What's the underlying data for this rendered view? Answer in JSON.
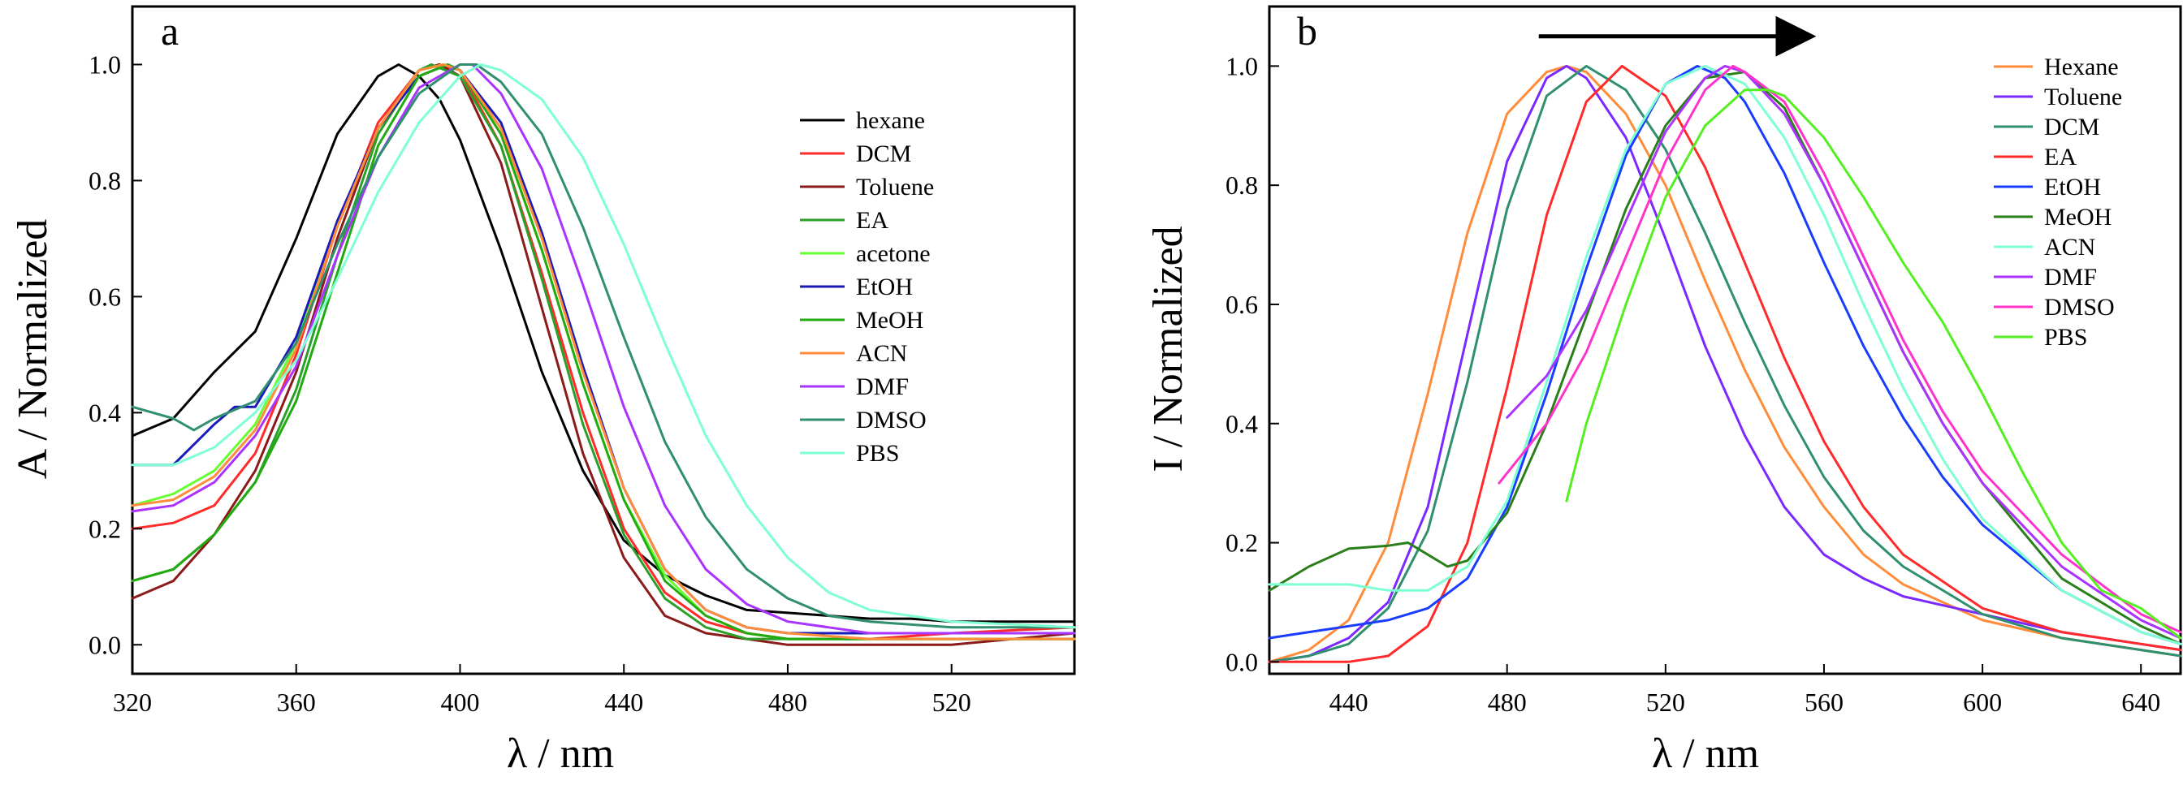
{
  "chart_data": [
    {
      "panel_label": "a",
      "type": "line",
      "xlabel": "λ / nm",
      "ylabel": "A / Normalized",
      "xlim": [
        320,
        550
      ],
      "ylim": [
        -0.05,
        1.1
      ],
      "xticks": [
        "320",
        "360",
        "400",
        "440",
        "480",
        "520"
      ],
      "yticks": [
        "0.0",
        "0.2",
        "0.4",
        "0.6",
        "0.8",
        "1.0"
      ],
      "legend_position": "right",
      "series": [
        {
          "name": "hexane",
          "color": "#000000",
          "x": [
            320,
            330,
            340,
            350,
            360,
            370,
            380,
            385,
            390,
            395,
            400,
            410,
            420,
            430,
            440,
            450,
            460,
            470,
            480,
            490,
            500,
            510,
            520,
            530,
            540,
            550
          ],
          "y": [
            0.36,
            0.39,
            0.47,
            0.54,
            0.7,
            0.88,
            0.98,
            1.0,
            0.98,
            0.94,
            0.87,
            0.68,
            0.47,
            0.3,
            0.18,
            0.12,
            0.085,
            0.06,
            0.055,
            0.05,
            0.045,
            0.045,
            0.04,
            0.04,
            0.04,
            0.04
          ]
        },
        {
          "name": "DCM",
          "color": "#ff2a2a",
          "x": [
            320,
            330,
            340,
            350,
            360,
            370,
            380,
            390,
            395,
            400,
            410,
            420,
            430,
            440,
            450,
            460,
            470,
            480,
            490,
            500,
            520,
            550
          ],
          "y": [
            0.2,
            0.21,
            0.24,
            0.33,
            0.5,
            0.72,
            0.9,
            0.99,
            1.0,
            0.99,
            0.86,
            0.64,
            0.4,
            0.2,
            0.09,
            0.04,
            0.02,
            0.01,
            0.01,
            0.01,
            0.02,
            0.03
          ]
        },
        {
          "name": "Toluene",
          "color": "#8b1a1a",
          "x": [
            320,
            330,
            340,
            350,
            360,
            370,
            380,
            390,
            395,
            400,
            410,
            420,
            430,
            440,
            450,
            460,
            470,
            480,
            490,
            500,
            520,
            550
          ],
          "y": [
            0.08,
            0.11,
            0.19,
            0.3,
            0.47,
            0.7,
            0.89,
            0.99,
            1.0,
            0.98,
            0.83,
            0.58,
            0.33,
            0.15,
            0.05,
            0.02,
            0.01,
            0.0,
            0.0,
            0.0,
            0.0,
            0.02
          ]
        },
        {
          "name": "EA",
          "color": "#2aa02a",
          "x": [
            320,
            330,
            340,
            350,
            360,
            370,
            380,
            390,
            393,
            400,
            410,
            420,
            430,
            440,
            450,
            460,
            470,
            480,
            500,
            550
          ],
          "y": [
            0.11,
            0.13,
            0.19,
            0.28,
            0.44,
            0.67,
            0.88,
            0.99,
            1.0,
            0.98,
            0.86,
            0.63,
            0.38,
            0.19,
            0.08,
            0.03,
            0.01,
            0.01,
            0.01,
            0.01
          ]
        },
        {
          "name": "acetone",
          "color": "#66ff33",
          "x": [
            320,
            330,
            340,
            350,
            360,
            370,
            380,
            390,
            396,
            400,
            410,
            420,
            430,
            440,
            450,
            460,
            470,
            480,
            500,
            550
          ],
          "y": [
            0.24,
            0.26,
            0.3,
            0.38,
            0.52,
            0.72,
            0.89,
            0.99,
            1.0,
            0.99,
            0.88,
            0.68,
            0.45,
            0.25,
            0.12,
            0.05,
            0.02,
            0.01,
            0.01,
            0.01
          ]
        },
        {
          "name": "EtOH",
          "color": "#1a1ab8",
          "x": [
            320,
            330,
            340,
            345,
            350,
            360,
            370,
            380,
            390,
            397,
            400,
            410,
            420,
            430,
            440,
            450,
            460,
            470,
            480,
            500,
            550
          ],
          "y": [
            0.31,
            0.31,
            0.38,
            0.41,
            0.41,
            0.53,
            0.73,
            0.89,
            0.98,
            1.0,
            0.99,
            0.9,
            0.71,
            0.48,
            0.27,
            0.13,
            0.06,
            0.03,
            0.02,
            0.02,
            0.02
          ]
        },
        {
          "name": "MeOH",
          "color": "#22aa11",
          "x": [
            320,
            330,
            340,
            350,
            360,
            370,
            380,
            390,
            397,
            400,
            410,
            420,
            430,
            440,
            450,
            460,
            470,
            480,
            500,
            550
          ],
          "y": [
            0.11,
            0.13,
            0.19,
            0.28,
            0.42,
            0.64,
            0.86,
            0.98,
            1.0,
            0.99,
            0.88,
            0.68,
            0.45,
            0.25,
            0.11,
            0.05,
            0.02,
            0.01,
            0.01,
            0.01
          ]
        },
        {
          "name": "ACN",
          "color": "#ff8c3a",
          "x": [
            320,
            330,
            340,
            350,
            360,
            370,
            380,
            390,
            396,
            400,
            410,
            420,
            430,
            440,
            450,
            460,
            470,
            480,
            500,
            550
          ],
          "y": [
            0.24,
            0.25,
            0.29,
            0.37,
            0.51,
            0.72,
            0.89,
            0.99,
            1.0,
            0.99,
            0.89,
            0.7,
            0.47,
            0.27,
            0.13,
            0.06,
            0.03,
            0.02,
            0.01,
            0.01
          ]
        },
        {
          "name": "DMF",
          "color": "#aa33ff",
          "x": [
            320,
            330,
            340,
            350,
            360,
            370,
            380,
            390,
            400,
            403,
            410,
            420,
            430,
            440,
            450,
            460,
            470,
            480,
            490,
            500,
            520,
            550
          ],
          "y": [
            0.23,
            0.24,
            0.28,
            0.36,
            0.48,
            0.67,
            0.84,
            0.96,
            1.0,
            1.0,
            0.95,
            0.82,
            0.62,
            0.41,
            0.24,
            0.13,
            0.07,
            0.04,
            0.03,
            0.02,
            0.02,
            0.02
          ]
        },
        {
          "name": "DMSO",
          "color": "#2f8f6f",
          "x": [
            320,
            330,
            335,
            340,
            350,
            360,
            370,
            380,
            390,
            400,
            404,
            410,
            420,
            430,
            440,
            450,
            460,
            470,
            480,
            490,
            500,
            520,
            550
          ],
          "y": [
            0.41,
            0.39,
            0.37,
            0.39,
            0.42,
            0.52,
            0.69,
            0.84,
            0.95,
            1.0,
            1.0,
            0.97,
            0.88,
            0.72,
            0.53,
            0.35,
            0.22,
            0.13,
            0.08,
            0.05,
            0.04,
            0.03,
            0.03
          ]
        },
        {
          "name": "PBS",
          "color": "#7fffd4",
          "x": [
            320,
            330,
            340,
            350,
            360,
            370,
            380,
            390,
            400,
            405,
            410,
            420,
            430,
            440,
            450,
            460,
            470,
            480,
            490,
            500,
            520,
            550
          ],
          "y": [
            0.31,
            0.31,
            0.34,
            0.4,
            0.49,
            0.63,
            0.78,
            0.9,
            0.98,
            1.0,
            0.99,
            0.94,
            0.84,
            0.69,
            0.52,
            0.36,
            0.24,
            0.15,
            0.09,
            0.06,
            0.04,
            0.03
          ]
        }
      ]
    },
    {
      "panel_label": "b",
      "type": "line",
      "xlabel": "λ / nm",
      "ylabel": "I / Normalized",
      "xlim": [
        420,
        650
      ],
      "ylim": [
        -0.02,
        1.1
      ],
      "xticks": [
        "440",
        "480",
        "520",
        "560",
        "600",
        "640"
      ],
      "yticks": [
        "0.0",
        "0.2",
        "0.4",
        "0.6",
        "0.8",
        "1.0"
      ],
      "legend_position": "right",
      "arrow": {
        "from": 488,
        "to": 556,
        "y": 1.05,
        "color": "#000000"
      },
      "series": [
        {
          "name": "Hexane",
          "color": "#ff8c3a",
          "x": [
            420,
            430,
            440,
            450,
            460,
            470,
            480,
            490,
            495,
            500,
            510,
            520,
            530,
            540,
            550,
            560,
            570,
            580,
            600,
            620,
            640,
            650
          ],
          "y": [
            0.0,
            0.02,
            0.07,
            0.2,
            0.45,
            0.72,
            0.92,
            0.99,
            1.0,
            0.99,
            0.92,
            0.8,
            0.64,
            0.49,
            0.36,
            0.26,
            0.18,
            0.13,
            0.07,
            0.04,
            0.02,
            0.01
          ]
        },
        {
          "name": "Toluene",
          "color": "#7a2aff",
          "x": [
            420,
            430,
            440,
            450,
            460,
            470,
            480,
            490,
            495,
            500,
            510,
            520,
            530,
            540,
            550,
            560,
            570,
            580,
            600,
            620,
            640,
            650
          ],
          "y": [
            0.0,
            0.01,
            0.04,
            0.1,
            0.26,
            0.55,
            0.84,
            0.98,
            1.0,
            0.98,
            0.88,
            0.71,
            0.53,
            0.38,
            0.26,
            0.18,
            0.14,
            0.11,
            0.08,
            0.05,
            0.03,
            0.02
          ]
        },
        {
          "name": "DCM",
          "color": "#2f8f6f",
          "x": [
            420,
            430,
            440,
            450,
            460,
            470,
            480,
            490,
            500,
            510,
            520,
            530,
            540,
            550,
            560,
            570,
            580,
            600,
            620,
            640,
            650
          ],
          "y": [
            0.0,
            0.01,
            0.03,
            0.09,
            0.22,
            0.47,
            0.76,
            0.95,
            1.0,
            0.96,
            0.86,
            0.72,
            0.57,
            0.43,
            0.31,
            0.22,
            0.16,
            0.08,
            0.04,
            0.02,
            0.01
          ]
        },
        {
          "name": "EA",
          "color": "#ff2a2a",
          "x": [
            420,
            430,
            440,
            450,
            460,
            470,
            480,
            490,
            500,
            509,
            520,
            530,
            540,
            550,
            560,
            570,
            580,
            600,
            620,
            640,
            650
          ],
          "y": [
            0.0,
            0.0,
            0.0,
            0.01,
            0.06,
            0.2,
            0.46,
            0.75,
            0.94,
            1.0,
            0.95,
            0.83,
            0.67,
            0.51,
            0.37,
            0.26,
            0.18,
            0.09,
            0.05,
            0.03,
            0.02
          ]
        },
        {
          "name": "EtOH",
          "color": "#1a3cff",
          "x": [
            420,
            430,
            440,
            450,
            460,
            470,
            480,
            490,
            500,
            510,
            520,
            528,
            535,
            540,
            550,
            560,
            570,
            580,
            590,
            600,
            620,
            640,
            650
          ],
          "y": [
            0.04,
            0.05,
            0.06,
            0.07,
            0.09,
            0.14,
            0.26,
            0.45,
            0.66,
            0.85,
            0.97,
            1.0,
            0.98,
            0.94,
            0.82,
            0.67,
            0.53,
            0.41,
            0.31,
            0.23,
            0.12,
            0.05,
            0.03
          ]
        },
        {
          "name": "MeOH",
          "color": "#2a7f1a",
          "x": [
            420,
            430,
            440,
            450,
            455,
            460,
            465,
            470,
            480,
            490,
            500,
            510,
            520,
            530,
            540,
            550,
            560,
            570,
            580,
            590,
            600,
            620,
            640,
            650
          ],
          "y": [
            0.12,
            0.16,
            0.19,
            0.195,
            0.2,
            0.18,
            0.16,
            0.17,
            0.25,
            0.4,
            0.58,
            0.76,
            0.9,
            0.98,
            0.99,
            0.93,
            0.8,
            0.66,
            0.52,
            0.4,
            0.3,
            0.14,
            0.06,
            0.03
          ]
        },
        {
          "name": "ACN",
          "color": "#7fffd4",
          "x": [
            420,
            430,
            440,
            450,
            460,
            470,
            480,
            490,
            500,
            510,
            520,
            530,
            540,
            550,
            560,
            570,
            580,
            590,
            600,
            620,
            640,
            650
          ],
          "y": [
            0.13,
            0.13,
            0.13,
            0.12,
            0.12,
            0.16,
            0.27,
            0.47,
            0.68,
            0.86,
            0.97,
            1.0,
            0.97,
            0.88,
            0.75,
            0.6,
            0.46,
            0.34,
            0.24,
            0.12,
            0.05,
            0.03
          ]
        },
        {
          "name": "DMF",
          "color": "#aa33ff",
          "x": [
            480,
            490,
            500,
            510,
            520,
            530,
            535,
            540,
            550,
            560,
            570,
            580,
            590,
            600,
            620,
            640,
            650
          ],
          "y": [
            0.41,
            0.48,
            0.59,
            0.74,
            0.89,
            0.98,
            1.0,
            0.99,
            0.92,
            0.8,
            0.66,
            0.52,
            0.4,
            0.3,
            0.16,
            0.07,
            0.04
          ]
        },
        {
          "name": "DMSO",
          "color": "#ff33cc",
          "x": [
            478,
            490,
            500,
            510,
            520,
            530,
            537,
            540,
            550,
            560,
            570,
            580,
            590,
            600,
            620,
            640,
            650
          ],
          "y": [
            0.3,
            0.4,
            0.52,
            0.68,
            0.84,
            0.96,
            1.0,
            0.99,
            0.94,
            0.82,
            0.68,
            0.54,
            0.42,
            0.32,
            0.18,
            0.08,
            0.05
          ]
        },
        {
          "name": "PBS",
          "color": "#55ee22",
          "x": [
            495,
            500,
            510,
            520,
            530,
            540,
            546,
            550,
            560,
            570,
            580,
            590,
            600,
            610,
            620,
            630,
            640,
            650
          ],
          "y": [
            0.27,
            0.4,
            0.6,
            0.78,
            0.9,
            0.96,
            0.96,
            0.95,
            0.88,
            0.78,
            0.67,
            0.57,
            0.45,
            0.32,
            0.2,
            0.12,
            0.09,
            0.04
          ]
        }
      ]
    }
  ]
}
